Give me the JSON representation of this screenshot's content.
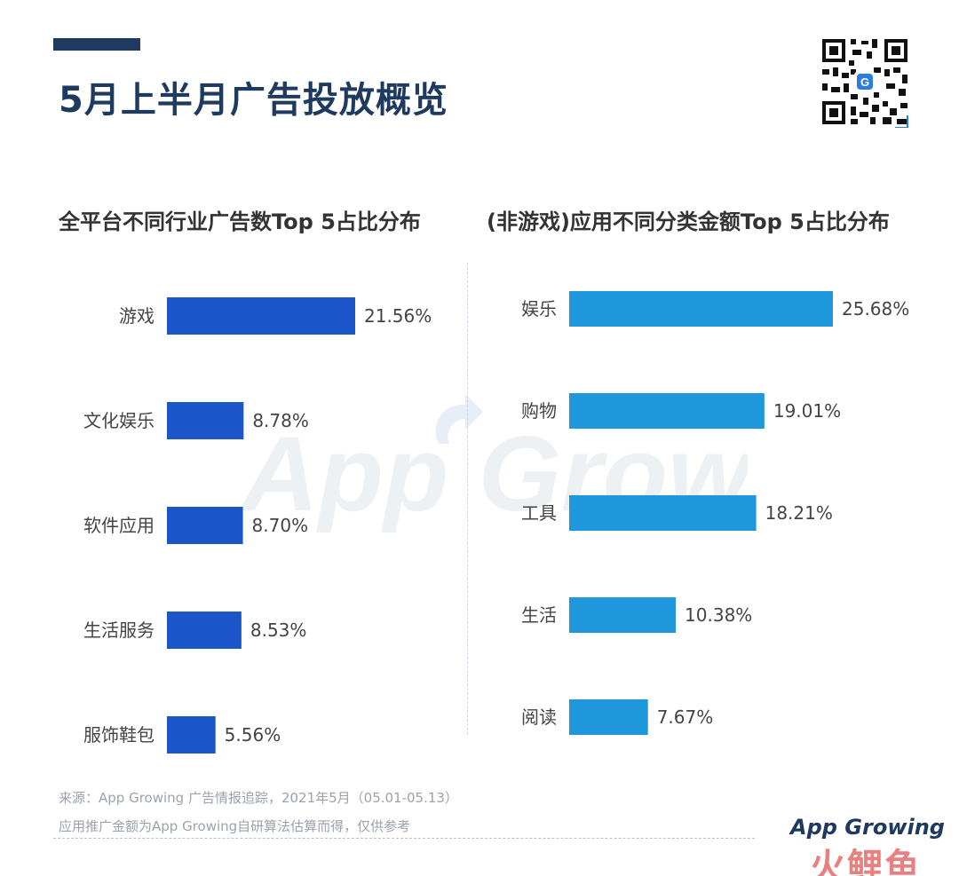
{
  "header": {
    "title": "5月上半月广告投放概览"
  },
  "watermark": {
    "text": "App Growing"
  },
  "chart_data": [
    {
      "type": "bar",
      "orientation": "horizontal",
      "title": "全平台不同行业广告数Top 5占比分布",
      "categories": [
        "游戏",
        "文化娱乐",
        "软件应用",
        "生活服务",
        "服饰鞋包"
      ],
      "values": [
        21.56,
        8.78,
        8.7,
        8.53,
        5.56
      ],
      "value_labels": [
        "21.56%",
        "8.78%",
        "8.70%",
        "8.53%",
        "5.56%"
      ],
      "color": "#1a56c9",
      "xlim": [
        0,
        21.56
      ],
      "grid": false,
      "legend": "none"
    },
    {
      "type": "bar",
      "orientation": "horizontal",
      "title": "(非游戏)应用不同分类金额Top 5占比分布",
      "categories": [
        "娱乐",
        "购物",
        "工具",
        "生活",
        "阅读"
      ],
      "values": [
        25.68,
        19.01,
        18.21,
        10.38,
        7.67
      ],
      "value_labels": [
        "25.68%",
        "19.01%",
        "18.21%",
        "10.38%",
        "7.67%"
      ],
      "color": "#1f97dd",
      "xlim": [
        0,
        25.68
      ],
      "grid": false,
      "legend": "none"
    }
  ],
  "footer": {
    "source_line1": "来源：App Growing 广告情报追踪，2021年5月（05.01-05.13）",
    "source_line2": "应用推广金额为App Growing自研算法估算而得，仅供参考",
    "logo": "App Growing",
    "stamp": "火鲤鱼"
  }
}
